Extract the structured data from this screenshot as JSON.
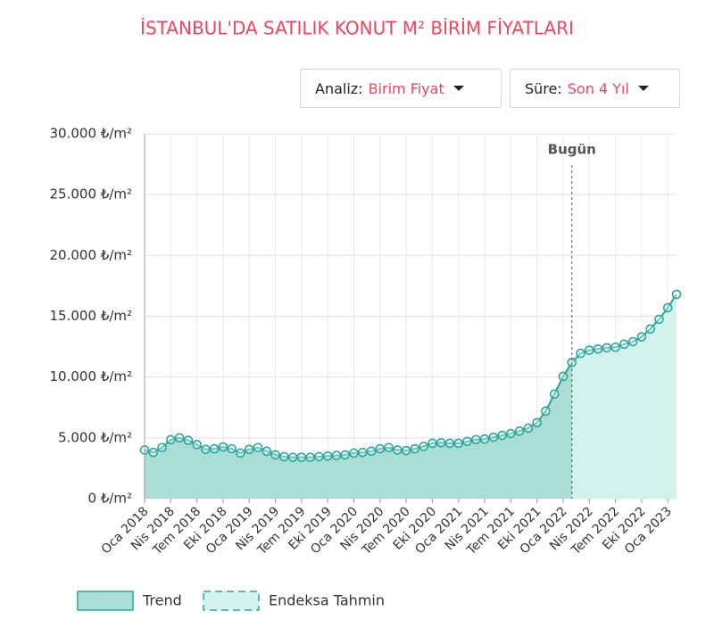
{
  "chart_data": {
    "type": "area",
    "title": "İSTANBUL'DA SATILIK KONUT M² BİRİM FİYATLARI",
    "controls": [
      {
        "label": "Analiz:",
        "value": "Birim Fiyat"
      },
      {
        "label": "Süre:",
        "value": "Son 4 Yıl"
      }
    ],
    "annotation": "Bugün",
    "categories": [
      "Oca 2018",
      null,
      null,
      "Nis 2018",
      null,
      null,
      "Tem 2018",
      null,
      null,
      "Eki 2018",
      null,
      null,
      "Oca 2019",
      null,
      null,
      "Nis 2019",
      null,
      null,
      "Tem 2019",
      null,
      null,
      "Eki 2019",
      null,
      null,
      "Oca 2020",
      null,
      null,
      "Nis 2020",
      null,
      null,
      "Tem 2020",
      null,
      null,
      "Eki 2020",
      null,
      null,
      "Oca 2021",
      null,
      null,
      "Nis 2021",
      null,
      null,
      "Tem 2021",
      null,
      null,
      "Eki 2021",
      null,
      null,
      "Oca 2022",
      null,
      null,
      "Nis 2022",
      null,
      null,
      "Tem 2022",
      null,
      null,
      "Eki 2022",
      null,
      null,
      "Oca 2023",
      null
    ],
    "series": [
      {
        "name": "Trend",
        "color": "#2aa79b",
        "fill": "#a9ddd5",
        "values": [
          4000,
          3800,
          4200,
          4850,
          5000,
          4800,
          4450,
          4050,
          4100,
          4250,
          4100,
          3750,
          4050,
          4200,
          3900,
          3600,
          3450,
          3400,
          3400,
          3400,
          3450,
          3500,
          3550,
          3600,
          3750,
          3800,
          3900,
          4100,
          4200,
          4000,
          3950,
          4100,
          4300,
          4550,
          4600,
          4550,
          4550,
          4700,
          4850,
          4900,
          5050,
          5200,
          5350,
          5550,
          5800,
          6250,
          7200,
          8600,
          10050,
          11200,
          null,
          null,
          null,
          null,
          null,
          null,
          null,
          null,
          null,
          null,
          null,
          null
        ]
      },
      {
        "name": "Endeksa Tahmin",
        "color": "#2aa79b",
        "fill": "#d3f2ed",
        "dashed": true,
        "values": [
          null,
          null,
          null,
          null,
          null,
          null,
          null,
          null,
          null,
          null,
          null,
          null,
          null,
          null,
          null,
          null,
          null,
          null,
          null,
          null,
          null,
          null,
          null,
          null,
          null,
          null,
          null,
          null,
          null,
          null,
          null,
          null,
          null,
          null,
          null,
          null,
          null,
          null,
          null,
          null,
          null,
          null,
          null,
          null,
          null,
          null,
          null,
          null,
          null,
          11200,
          11950,
          12200,
          12300,
          12400,
          12450,
          12700,
          12900,
          13300,
          13950,
          14750,
          15700,
          16800
        ]
      }
    ],
    "ylim": [
      0,
      30000
    ],
    "yticks": [
      {
        "value": 0,
        "label": "0 ₺/m²"
      },
      {
        "value": 5000,
        "label": "5.000 ₺/m²"
      },
      {
        "value": 10000,
        "label": "10.000 ₺/m²"
      },
      {
        "value": 15000,
        "label": "15.000 ₺/m²"
      },
      {
        "value": 20000,
        "label": "20.000 ₺/m²"
      },
      {
        "value": 25000,
        "label": "25.000 ₺/m²"
      },
      {
        "value": 30000,
        "label": "30.000 ₺/m²"
      }
    ],
    "grid": true
  }
}
